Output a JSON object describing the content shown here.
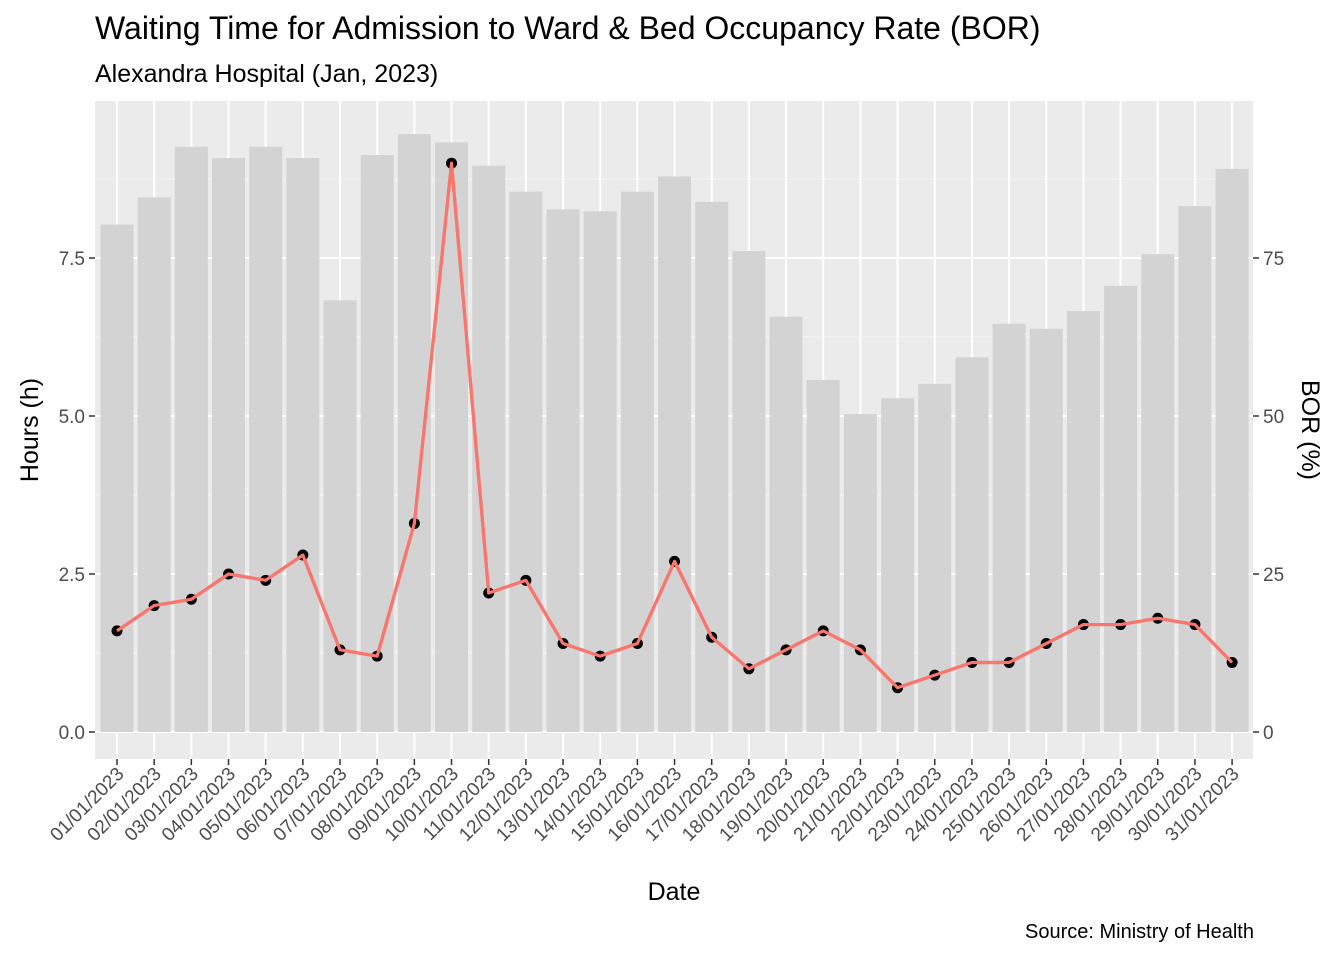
{
  "chart_data": {
    "type": "bar+line",
    "title": "Waiting Time for Admission to Ward & Bed Occupancy Rate (BOR)",
    "subtitle": "Alexandra Hospital (Jan, 2023)",
    "caption": "Source: Ministry of Health",
    "xlabel": "Date",
    "ylabel": "Hours (h)",
    "y2label": "BOR (%)",
    "ylim": [
      0,
      10
    ],
    "y2lim": [
      0,
      100
    ],
    "yticks": [
      "0.0",
      "2.5",
      "5.0",
      "7.5"
    ],
    "yticks_values": [
      0,
      2.5,
      5.0,
      7.5
    ],
    "y2ticks": [
      "0",
      "25",
      "50",
      "75"
    ],
    "y2ticks_values": [
      0,
      25,
      50,
      75
    ],
    "categories": [
      "01/01/2023",
      "02/01/2023",
      "03/01/2023",
      "04/01/2023",
      "05/01/2023",
      "06/01/2023",
      "07/01/2023",
      "08/01/2023",
      "09/01/2023",
      "10/01/2023",
      "11/01/2023",
      "12/01/2023",
      "13/01/2023",
      "14/01/2023",
      "15/01/2023",
      "16/01/2023",
      "17/01/2023",
      "18/01/2023",
      "19/01/2023",
      "20/01/2023",
      "21/01/2023",
      "22/01/2023",
      "23/01/2023",
      "24/01/2023",
      "25/01/2023",
      "26/01/2023",
      "27/01/2023",
      "28/01/2023",
      "29/01/2023",
      "30/01/2023",
      "31/01/2023"
    ],
    "series": [
      {
        "type": "bar",
        "axis": "right",
        "color": "#d3d3d3",
        "values": [
          80.3,
          84.6,
          92.6,
          90.8,
          92.6,
          90.8,
          68.3,
          91.3,
          94.6,
          93.3,
          89.6,
          85.5,
          82.7,
          82.4,
          85.5,
          87.9,
          83.9,
          76.1,
          65.7,
          55.7,
          50.3,
          52.8,
          55.1,
          59.3,
          64.6,
          63.8,
          66.6,
          70.6,
          75.6,
          83.2,
          89.1
        ]
      },
      {
        "type": "line",
        "axis": "left",
        "color": "#f8766d",
        "point_color": "#000000",
        "values": [
          1.6,
          2.0,
          2.1,
          2.5,
          2.4,
          2.8,
          1.3,
          1.2,
          3.3,
          9.0,
          2.2,
          2.4,
          1.4,
          1.2,
          1.4,
          2.7,
          1.5,
          1.0,
          1.3,
          1.6,
          1.3,
          0.7,
          0.9,
          1.1,
          1.1,
          1.4,
          1.7,
          1.7,
          1.8,
          1.7,
          1.1
        ]
      }
    ],
    "background": "#ebebeb",
    "grid": true,
    "legend": "none"
  }
}
